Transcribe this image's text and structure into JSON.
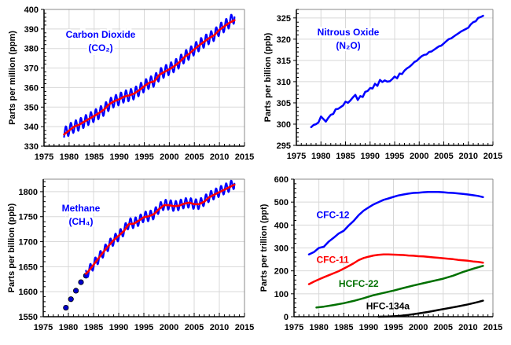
{
  "chart_data": [
    {
      "id": "co2",
      "type": "line",
      "title": "Carbon Dioxide",
      "subtitle": "(CO2)",
      "annotation_lines": [
        "Carbon Dioxide",
        "(CO₂)"
      ],
      "annotation_color": "#0000ff",
      "xlabel": "",
      "ylabel": "Parts per million (ppm)",
      "xlim": [
        1975,
        2015
      ],
      "ylim": [
        330,
        400
      ],
      "xticks": [
        1975,
        1980,
        1985,
        1990,
        1995,
        2000,
        2005,
        2010,
        2015
      ],
      "yticks": [
        330,
        340,
        350,
        360,
        370,
        380,
        390,
        400
      ],
      "grid": true,
      "series": [
        {
          "name": "monthly",
          "color": "#0000ff",
          "seasonal_amplitude": 3,
          "x": [
            1979,
            1980,
            1981,
            1982,
            1983,
            1984,
            1985,
            1986,
            1987,
            1988,
            1989,
            1990,
            1991,
            1992,
            1993,
            1994,
            1995,
            1996,
            1997,
            1998,
            1999,
            2000,
            2001,
            2002,
            2003,
            2004,
            2005,
            2006,
            2007,
            2008,
            2009,
            2010,
            2011,
            2012,
            2013
          ],
          "y": [
            336.5,
            338.5,
            340,
            341,
            342.5,
            344,
            345.5,
            347,
            348.7,
            351.3,
            353,
            354,
            355.5,
            356,
            357,
            358.8,
            360.8,
            362.5,
            363.5,
            366.5,
            368.2,
            369.5,
            371,
            373,
            375.7,
            377.4,
            379.7,
            381.8,
            383.6,
            385.4,
            387,
            389.7,
            391.5,
            393.5,
            396
          ]
        },
        {
          "name": "trend",
          "color": "#ff0000",
          "x": [
            1979,
            1980,
            1981,
            1982,
            1983,
            1984,
            1985,
            1986,
            1987,
            1988,
            1989,
            1990,
            1991,
            1992,
            1993,
            1994,
            1995,
            1996,
            1997,
            1998,
            1999,
            2000,
            2001,
            2002,
            2003,
            2004,
            2005,
            2006,
            2007,
            2008,
            2009,
            2010,
            2011,
            2012,
            2013
          ],
          "y": [
            336,
            338,
            340,
            341,
            342.5,
            344,
            345.5,
            347,
            348.8,
            351.5,
            353,
            354,
            355.4,
            356,
            357,
            358.7,
            360.7,
            362.5,
            363.2,
            366.5,
            368,
            369.4,
            371,
            373,
            375.6,
            377.4,
            379.6,
            381.7,
            383.6,
            385.4,
            386.9,
            389.6,
            391.4,
            393.2,
            394.5
          ]
        }
      ]
    },
    {
      "id": "n2o",
      "type": "line",
      "title": "Nitrous Oxide",
      "subtitle": "(N2O)",
      "annotation_lines": [
        "Nitrous Oxide",
        "(N₂O)"
      ],
      "annotation_color": "#0000ff",
      "xlabel": "",
      "ylabel": "Parts per billion (ppb)",
      "xlim": [
        1975,
        2015
      ],
      "ylim": [
        295,
        327
      ],
      "xticks": [
        1975,
        1980,
        1985,
        1990,
        1995,
        2000,
        2005,
        2010,
        2015
      ],
      "yticks": [
        295,
        300,
        305,
        310,
        315,
        320,
        325
      ],
      "grid": true,
      "series": [
        {
          "name": "N2O",
          "color": "#0000ff",
          "x": [
            1978,
            1978.5,
            1979,
            1979.5,
            1980,
            1980.5,
            1981,
            1981.5,
            1982,
            1982.5,
            1983,
            1983.5,
            1984,
            1984.5,
            1985,
            1985.5,
            1986,
            1986.5,
            1987,
            1987.5,
            1988,
            1988.5,
            1989,
            1989.5,
            1990,
            1990.5,
            1991,
            1991.5,
            1992,
            1992.5,
            1993,
            1993.5,
            1994,
            1994.5,
            1995,
            1995.5,
            1996,
            1996.5,
            1997,
            1997.5,
            1998,
            1998.5,
            1999,
            1999.5,
            2000,
            2000.5,
            2001,
            2001.5,
            2002,
            2002.5,
            2003,
            2003.5,
            2004,
            2004.5,
            2005,
            2005.5,
            2006,
            2006.5,
            2007,
            2007.5,
            2008,
            2008.5,
            2009,
            2009.5,
            2010,
            2010.5,
            2011,
            2011.5,
            2012,
            2012.5,
            2013
          ],
          "y": [
            299.3,
            299.8,
            300,
            300.4,
            301.8,
            301.2,
            300.6,
            301.5,
            302.2,
            302.4,
            303.5,
            303.6,
            304,
            304.4,
            305.3,
            305,
            305.6,
            306.3,
            306.9,
            305.7,
            306.6,
            306.4,
            307.6,
            307.8,
            308.5,
            308.4,
            309.5,
            309,
            310.4,
            309.9,
            310.3,
            310,
            310.1,
            310.6,
            311.2,
            310.8,
            311.9,
            311.8,
            312.6,
            313.1,
            313.5,
            314,
            314.6,
            314.9,
            315.5,
            316,
            316.3,
            316.4,
            317,
            317.1,
            317.5,
            317.9,
            318.3,
            318.5,
            319,
            319.5,
            320,
            320.2,
            320.6,
            321,
            321.4,
            321.8,
            322.1,
            322.4,
            322.7,
            323.5,
            324,
            324.2,
            325,
            325.2,
            325.5
          ]
        }
      ]
    },
    {
      "id": "ch4",
      "type": "line",
      "title": "Methane",
      "subtitle": "(CH4)",
      "annotation_lines": [
        "Methane",
        "(CH₄)"
      ],
      "annotation_color": "#0000ff",
      "xlabel": "",
      "ylabel": "Parts per billion (ppb)",
      "xlim": [
        1975,
        2015
      ],
      "ylim": [
        1550,
        1825
      ],
      "xticks": [
        1975,
        1980,
        1985,
        1990,
        1995,
        2000,
        2005,
        2010,
        2015
      ],
      "yticks": [
        1550,
        1600,
        1650,
        1700,
        1750,
        1800
      ],
      "grid": true,
      "series": [
        {
          "name": "early-annual-points",
          "type": "scatter",
          "color": "#000080",
          "x": [
            1979.5,
            1980.5,
            1981.5,
            1982.5,
            1983.5
          ],
          "y": [
            1568,
            1585,
            1602,
            1619,
            1632
          ]
        },
        {
          "name": "monthly",
          "color": "#0000ff",
          "seasonal_amplitude": 10,
          "x": [
            1983.5,
            1984,
            1985,
            1986,
            1987,
            1988,
            1989,
            1990,
            1991,
            1992,
            1993,
            1994,
            1995,
            1996,
            1997,
            1998,
            1999,
            2000,
            2001,
            2002,
            2003,
            2004,
            2005,
            2006,
            2007,
            2008,
            2009,
            2010,
            2011,
            2012,
            2013
          ],
          "y": [
            1636,
            1641,
            1654,
            1667,
            1680,
            1693,
            1703,
            1712,
            1722,
            1737,
            1737,
            1742,
            1750,
            1751,
            1755,
            1767,
            1774,
            1774,
            1771,
            1773,
            1777,
            1778,
            1775,
            1775,
            1782,
            1790,
            1795,
            1800,
            1805,
            1810,
            1816
          ]
        },
        {
          "name": "trend",
          "color": "#ff0000",
          "x": [
            1983.5,
            1984,
            1985,
            1986,
            1987,
            1988,
            1989,
            1990,
            1991,
            1992,
            1993,
            1994,
            1995,
            1996,
            1997,
            1998,
            1999,
            2000,
            2001,
            2002,
            2003,
            2004,
            2005,
            2006,
            2007,
            2008,
            2009,
            2010,
            2011,
            2012,
            2013
          ],
          "y": [
            1636,
            1641,
            1654,
            1667,
            1680,
            1692,
            1703,
            1712,
            1721,
            1735,
            1736,
            1742,
            1749,
            1751,
            1755,
            1765,
            1773,
            1773,
            1771,
            1772,
            1776,
            1778,
            1775,
            1775,
            1780,
            1789,
            1794,
            1799,
            1804,
            1809,
            1814
          ]
        }
      ]
    },
    {
      "id": "cfc",
      "type": "line",
      "title": "",
      "xlabel": "",
      "ylabel": "Parts per trillion (ppt)",
      "xlim": [
        1975,
        2015
      ],
      "ylim": [
        0,
        600
      ],
      "xticks": [
        1975,
        1980,
        1985,
        1990,
        1995,
        2000,
        2005,
        2010,
        2015
      ],
      "yticks": [
        0,
        100,
        200,
        300,
        400,
        500,
        600
      ],
      "grid": true,
      "series": [
        {
          "name": "CFC-12",
          "color": "#0000ff",
          "x": [
            1978,
            1979,
            1980,
            1981,
            1982,
            1983,
            1984,
            1985,
            1986,
            1987,
            1988,
            1989,
            1990,
            1991,
            1992,
            1993,
            1994,
            1995,
            1996,
            1997,
            1998,
            1999,
            2000,
            2001,
            2002,
            2003,
            2004,
            2005,
            2006,
            2007,
            2008,
            2009,
            2010,
            2011,
            2012,
            2013
          ],
          "y": [
            272,
            282,
            300,
            305,
            328,
            345,
            363,
            375,
            398,
            418,
            443,
            463,
            477,
            490,
            500,
            510,
            516,
            523,
            529,
            533,
            537,
            540,
            541,
            543,
            544,
            544,
            544,
            543,
            541,
            540,
            538,
            536,
            533,
            530,
            527,
            522
          ]
        },
        {
          "name": "CFC-11",
          "color": "#ff0000",
          "x": [
            1978,
            1979,
            1980,
            1981,
            1982,
            1983,
            1984,
            1985,
            1986,
            1987,
            1988,
            1989,
            1990,
            1991,
            1992,
            1993,
            1994,
            1995,
            1996,
            1997,
            1998,
            1999,
            2000,
            2001,
            2002,
            2003,
            2004,
            2005,
            2006,
            2007,
            2008,
            2009,
            2010,
            2011,
            2012,
            2013
          ],
          "y": [
            142,
            153,
            163,
            172,
            181,
            190,
            199,
            210,
            221,
            233,
            247,
            256,
            262,
            267,
            270,
            272,
            272,
            271,
            270,
            269,
            267,
            266,
            264,
            263,
            261,
            259,
            257,
            255,
            253,
            251,
            248,
            246,
            244,
            241,
            239,
            236
          ]
        },
        {
          "name": "HCFC-22",
          "color": "#007000",
          "x": [
            1979.5,
            1981,
            1983,
            1985,
            1987,
            1989,
            1991,
            1993,
            1995,
            1997,
            1999,
            2001,
            2003,
            2005,
            2007,
            2009,
            2011,
            2013
          ],
          "y": [
            40,
            44,
            51,
            59,
            69,
            81,
            94,
            104,
            114,
            125,
            136,
            146,
            156,
            166,
            179,
            195,
            209,
            222
          ]
        },
        {
          "name": "HFC-134a",
          "color": "#000000",
          "x": [
            1992,
            1994,
            1996,
            1998,
            2000,
            2002,
            2004,
            2006,
            2008,
            2010,
            2012,
            2013
          ],
          "y": [
            0,
            1,
            3,
            8,
            14,
            21,
            29,
            37,
            45,
            54,
            64,
            70
          ]
        }
      ],
      "annotations": [
        {
          "text": "CFC-12",
          "color": "#0000ff",
          "x": 1979.5,
          "y": 430
        },
        {
          "text": "CFC-11",
          "color": "#ff0000",
          "x": 1979.5,
          "y": 235
        },
        {
          "text": "HCFC-22",
          "color": "#007000",
          "x": 1984,
          "y": 130
        },
        {
          "text": "HFC-134a",
          "color": "#000000",
          "x": 1989.5,
          "y": 33
        }
      ]
    }
  ]
}
